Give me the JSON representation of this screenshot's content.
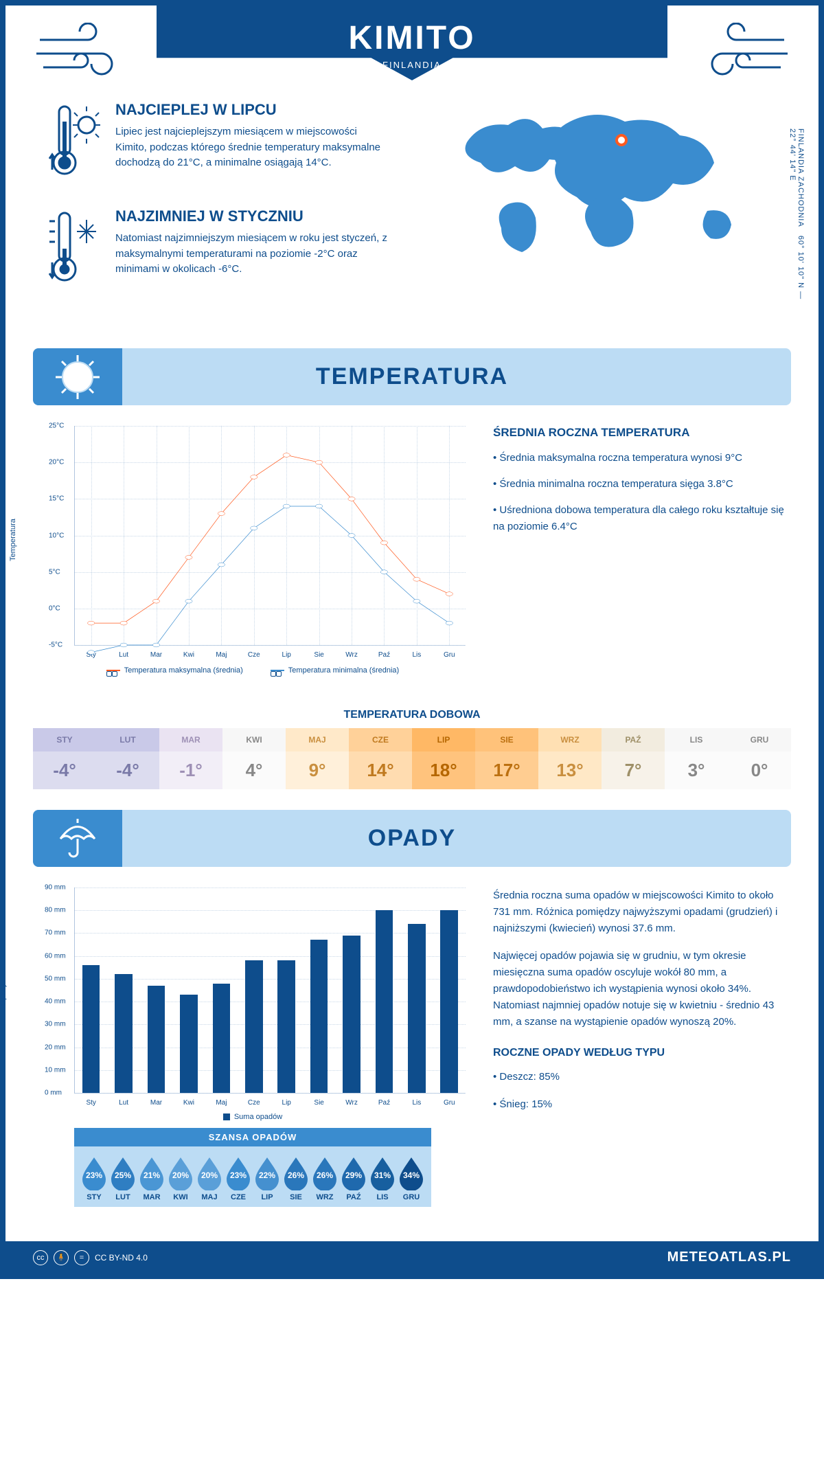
{
  "header": {
    "city": "KIMITO",
    "country": "FINLANDIA"
  },
  "coords": "60° 10' 10\" N — 22° 44' 14\" E",
  "region": "FINLANDIA ZACHODNIA",
  "map_marker": {
    "left_pct": 53,
    "top_pct": 20
  },
  "colors": {
    "primary": "#0e4d8c",
    "light": "#bcdcf4",
    "medium": "#3a8ccf",
    "max_line": "#ff5a1f",
    "min_line": "#3a8ccf",
    "grid": "#c8d8e8"
  },
  "warm": {
    "title": "NAJCIEPLEJ W LIPCU",
    "text": "Lipiec jest najcieplejszym miesiącem w miejscowości Kimito, podczas którego średnie temperatury maksymalne dochodzą do 21°C, a minimalne osiągają 14°C."
  },
  "cold": {
    "title": "NAJZIMNIEJ W STYCZNIU",
    "text": "Natomiast najzimniejszym miesiącem w roku jest styczeń, z maksymalnymi temperaturami na poziomie -2°C oraz minimami w okolicach -6°C."
  },
  "temp_section_title": "TEMPERATURA",
  "temp_chart": {
    "type": "line",
    "months": [
      "Sty",
      "Lut",
      "Mar",
      "Kwi",
      "Maj",
      "Cze",
      "Lip",
      "Sie",
      "Wrz",
      "Paź",
      "Lis",
      "Gru"
    ],
    "max_values": [
      -2,
      -2,
      1,
      7,
      13,
      18,
      21,
      20,
      15,
      9,
      4,
      2
    ],
    "min_values": [
      -6,
      -5,
      -5,
      1,
      6,
      11,
      14,
      14,
      10,
      5,
      1,
      -2
    ],
    "ylim": [
      -5,
      25
    ],
    "ytick_step": 5,
    "ylabel": "Temperatura",
    "legend_max": "Temperatura maksymalna (średnia)",
    "legend_min": "Temperatura minimalna (średnia)",
    "max_color": "#ff5a1f",
    "min_color": "#3a8ccf",
    "marker_size": 4,
    "line_width": 2
  },
  "temp_text": {
    "title": "ŚREDNIA ROCZNA TEMPERATURA",
    "p1": "• Średnia maksymalna roczna temperatura wynosi 9°C",
    "p2": "• Średnia minimalna roczna temperatura sięga 3.8°C",
    "p3": "• Uśredniona dobowa temperatura dla całego roku kształtuje się na poziomie 6.4°C"
  },
  "dobowa_title": "TEMPERATURA DOBOWA",
  "dobowa": {
    "months": [
      "STY",
      "LUT",
      "MAR",
      "KWI",
      "MAJ",
      "CZE",
      "LIP",
      "SIE",
      "WRZ",
      "PAŹ",
      "LIS",
      "GRU"
    ],
    "values": [
      "-4°",
      "-4°",
      "-1°",
      "4°",
      "9°",
      "14°",
      "18°",
      "17°",
      "13°",
      "7°",
      "3°",
      "0°"
    ],
    "head_bg": [
      "#c9c9e8",
      "#c9c9e8",
      "#eae3f2",
      "#f7f7f7",
      "#ffe9c9",
      "#ffd199",
      "#ffb865",
      "#ffc27a",
      "#ffe0b3",
      "#f2ecdf",
      "#f7f7f7",
      "#f7f7f7"
    ],
    "val_bg": [
      "#dcdcef",
      "#dcdcef",
      "#f2eef7",
      "#fbfbfb",
      "#fff0da",
      "#ffdcb0",
      "#ffc37d",
      "#ffcd91",
      "#ffe8c6",
      "#f7f2e9",
      "#fbfbfb",
      "#fbfbfb"
    ],
    "text_color": [
      "#7a7aa8",
      "#7a7aa8",
      "#9e90b5",
      "#888",
      "#c98f3f",
      "#c07a20",
      "#b56600",
      "#bc7010",
      "#c98f3f",
      "#9e9068",
      "#888",
      "#888"
    ]
  },
  "precip_section_title": "OPADY",
  "precip_chart": {
    "type": "bar",
    "months": [
      "Sty",
      "Lut",
      "Mar",
      "Kwi",
      "Maj",
      "Cze",
      "Lip",
      "Sie",
      "Wrz",
      "Paź",
      "Lis",
      "Gru"
    ],
    "values": [
      56,
      52,
      47,
      43,
      48,
      58,
      58,
      67,
      69,
      80,
      74,
      80
    ],
    "ylim": [
      0,
      90
    ],
    "ytick_step": 10,
    "ylabel": "Opady",
    "bar_color": "#0e4d8c",
    "bar_width_pct": 4.5,
    "legend": "Suma opadów"
  },
  "precip_text": {
    "p1": "Średnia roczna suma opadów w miejscowości Kimito to około 731 mm. Różnica pomiędzy najwyższymi opadami (grudzień) i najniższymi (kwiecień) wynosi 37.6 mm.",
    "p2": "Najwięcej opadów pojawia się w grudniu, w tym okresie miesięczna suma opadów oscyluje wokół 80 mm, a prawdopodobieństwo ich wystąpienia wynosi około 34%. Natomiast najmniej opadów notuje się w kwietniu - średnio 43 mm, a szanse na wystąpienie opadów wynoszą 20%.",
    "type_title": "ROCZNE OPADY WEDŁUG TYPU",
    "type_p1": "• Deszcz: 85%",
    "type_p2": "• Śnieg: 15%"
  },
  "szansa": {
    "title": "SZANSA OPADÓW",
    "months": [
      "STY",
      "LUT",
      "MAR",
      "KWI",
      "MAJ",
      "CZE",
      "LIP",
      "SIE",
      "WRZ",
      "PAŹ",
      "LIS",
      "GRU"
    ],
    "pcts": [
      "23%",
      "25%",
      "21%",
      "20%",
      "20%",
      "23%",
      "22%",
      "26%",
      "26%",
      "29%",
      "31%",
      "34%"
    ],
    "shades": [
      "#3a8ccf",
      "#2f7ec2",
      "#4a96d4",
      "#5a9fd8",
      "#5a9fd8",
      "#3a8ccf",
      "#4590cf",
      "#2a77bb",
      "#2a77bb",
      "#1f69ad",
      "#175f9f",
      "#0e4d8c"
    ]
  },
  "footer": {
    "license": "CC BY-ND 4.0",
    "site": "METEOATLAS.PL"
  }
}
